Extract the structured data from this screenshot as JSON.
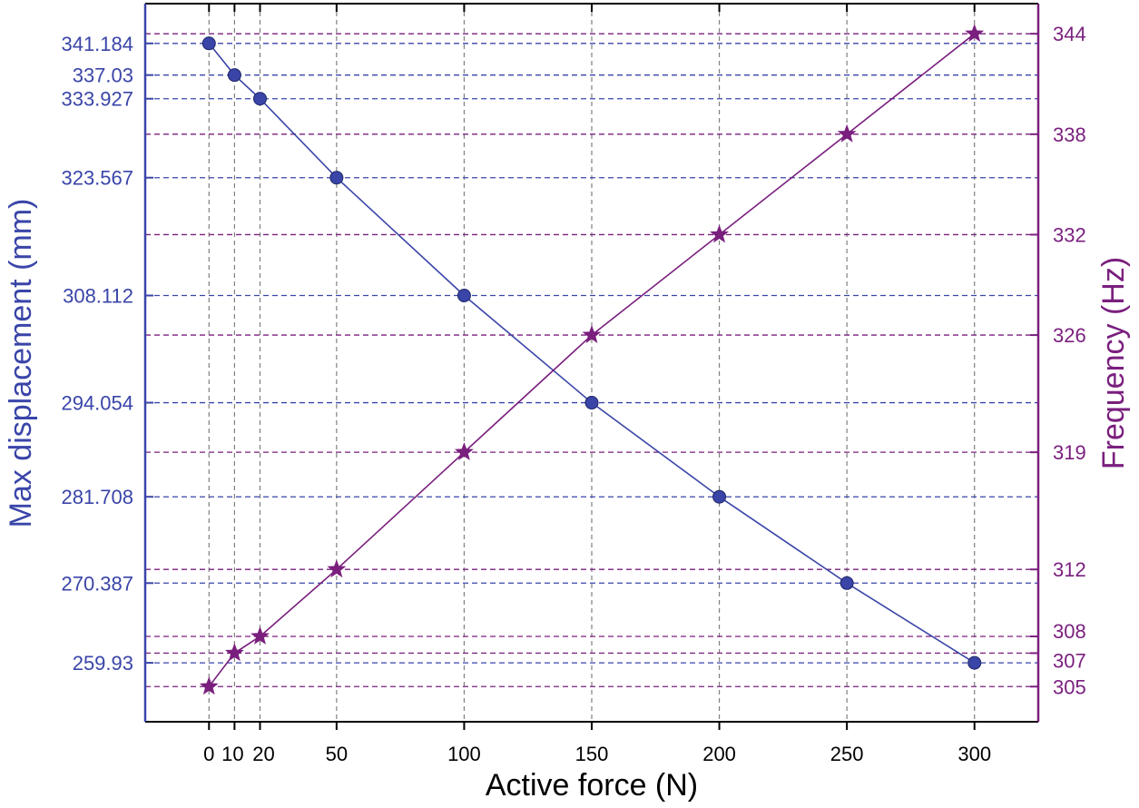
{
  "colors": {
    "left": "#3a45a8",
    "right": "#7a1f7e",
    "frame": "#000000",
    "grid": "#7f7f7f"
  },
  "chart_data": {
    "type": "line",
    "title": "",
    "xlabel": "Active force (N)",
    "ylabel_left": "Max displacement (mm)",
    "ylabel_right": "Frequency (Hz)",
    "x_ticks": [
      0,
      10,
      20,
      50,
      100,
      150,
      200,
      250,
      300
    ],
    "x_tick_labels": [
      "0",
      "10",
      "20",
      "50",
      "100",
      "150",
      "200",
      "250",
      "300"
    ],
    "xlim": [
      -25,
      325
    ],
    "ylim_left": [
      252.2,
      346.4
    ],
    "ylim_right": [
      302.9,
      345.8
    ],
    "y_left_ticks": [
      341.184,
      337.03,
      333.927,
      323.567,
      308.112,
      294.054,
      281.708,
      270.387,
      259.93
    ],
    "y_left_tick_labels": [
      "341.184",
      "337.03",
      "333.927",
      "323.567",
      "308.112",
      "294.054",
      "281.708",
      "270.387",
      "259.93"
    ],
    "y_right_ticks": [
      344,
      338,
      332,
      326,
      319,
      312,
      308,
      307,
      305
    ],
    "y_right_tick_labels": [
      "344",
      "338",
      "332",
      "326",
      "319",
      "312",
      "308",
      "307",
      "305"
    ],
    "grid": true,
    "series": [
      {
        "axis": "left",
        "marker": "circle",
        "x": [
          0,
          10,
          20,
          50,
          100,
          150,
          200,
          250,
          300
        ],
        "values": [
          341.184,
          337.03,
          333.927,
          323.567,
          308.112,
          294.054,
          281.708,
          270.387,
          259.93
        ]
      },
      {
        "axis": "right",
        "marker": "star",
        "x": [
          0,
          10,
          20,
          50,
          100,
          150,
          200,
          250,
          300
        ],
        "values": [
          305,
          307,
          308,
          312,
          319,
          326,
          332,
          338,
          344
        ]
      }
    ]
  }
}
